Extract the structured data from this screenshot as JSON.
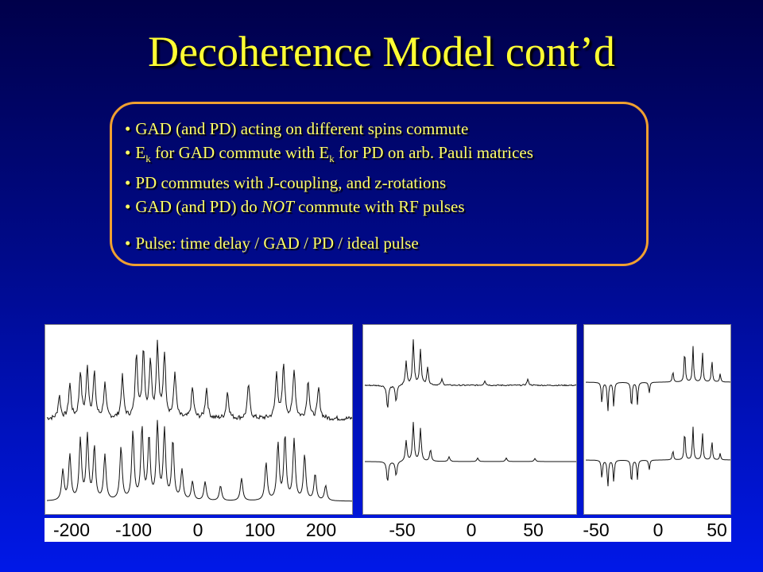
{
  "title": "Decoherence Model cont’d",
  "bullets": {
    "b1": "GAD (and PD) acting on different spins commute",
    "b2_a": "E",
    "b2_sub1": "k",
    "b2_b": " for GAD commute with E",
    "b2_sub2": "k",
    "b2_c": " for PD on arb. Pauli matrices",
    "b3": "PD commutes with J-coupling, and z-rotations",
    "b4_a": "GAD (and PD) do ",
    "b4_em": "NOT",
    "b4_b": " commute with RF pulses",
    "b5": "Pulse: time delay / GAD / PD / ideal pulse"
  },
  "colors": {
    "title": "#ffff33",
    "text": "#ffff66",
    "box_border": "#f0a030",
    "spectrum": "#111111"
  },
  "chart_data": [
    {
      "type": "line",
      "description_ref": "left spectra panel (experimental top, simulated bottom)",
      "xlim": [
        -220,
        220
      ],
      "x_tick_labels": [
        "-200",
        "-100",
        "0",
        "100",
        "200"
      ],
      "series": [
        {
          "peaks": [
            [
              -200,
              30
            ],
            [
              -185,
              45
            ],
            [
              -170,
              60
            ],
            [
              -160,
              65
            ],
            [
              -150,
              58
            ],
            [
              -135,
              45
            ],
            [
              -110,
              55
            ],
            [
              -90,
              85
            ],
            [
              -80,
              90
            ],
            [
              -70,
              75
            ],
            [
              -60,
              95
            ],
            [
              -50,
              85
            ],
            [
              -35,
              60
            ],
            [
              -10,
              40
            ],
            [
              10,
              40
            ],
            [
              40,
              35
            ],
            [
              70,
              45
            ],
            [
              110,
              60
            ],
            [
              120,
              70
            ],
            [
              135,
              65
            ],
            [
              155,
              50
            ],
            [
              170,
              40
            ]
          ],
          "noise": 6
        },
        {
          "peaks": [
            [
              -195,
              40
            ],
            [
              -185,
              60
            ],
            [
              -170,
              80
            ],
            [
              -160,
              85
            ],
            [
              -150,
              70
            ],
            [
              -135,
              60
            ],
            [
              -112,
              70
            ],
            [
              -95,
              90
            ],
            [
              -82,
              95
            ],
            [
              -72,
              82
            ],
            [
              -60,
              100
            ],
            [
              -50,
              92
            ],
            [
              -38,
              78
            ],
            [
              -25,
              40
            ],
            [
              -10,
              25
            ],
            [
              8,
              25
            ],
            [
              30,
              20
            ],
            [
              60,
              30
            ],
            [
              95,
              50
            ],
            [
              112,
              75
            ],
            [
              122,
              85
            ],
            [
              135,
              80
            ],
            [
              150,
              60
            ],
            [
              165,
              35
            ],
            [
              180,
              20
            ]
          ],
          "noise": 0
        }
      ]
    },
    {
      "type": "line",
      "description_ref": "middle spectra panel",
      "xlim": [
        -75,
        75
      ],
      "x_tick_labels": [
        "-50",
        "0",
        "50"
      ],
      "series": [
        {
          "peaks": [
            [
              -58,
              -40
            ],
            [
              -52,
              -28
            ],
            [
              -45,
              40
            ],
            [
              -40,
              75
            ],
            [
              -35,
              60
            ],
            [
              -30,
              30
            ],
            [
              -20,
              10
            ],
            [
              10,
              8
            ],
            [
              40,
              10
            ]
          ],
          "noise": 2
        },
        {
          "peaks": [
            [
              -58,
              -35
            ],
            [
              -52,
              -25
            ],
            [
              -45,
              35
            ],
            [
              -40,
              65
            ],
            [
              -35,
              55
            ],
            [
              -28,
              20
            ],
            [
              -15,
              8
            ],
            [
              5,
              6
            ],
            [
              25,
              6
            ],
            [
              45,
              5
            ]
          ],
          "noise": 0
        }
      ]
    },
    {
      "type": "line",
      "description_ref": "right spectra panel",
      "xlim": [
        -70,
        55
      ],
      "x_tick_labels": [
        "-50",
        "0",
        "50"
      ],
      "series": [
        {
          "peaks": [
            [
              -55,
              -40
            ],
            [
              -50,
              -55
            ],
            [
              -45,
              -45
            ],
            [
              -30,
              -50
            ],
            [
              -25,
              -40
            ],
            [
              -15,
              -20
            ],
            [
              5,
              20
            ],
            [
              15,
              60
            ],
            [
              22,
              65
            ],
            [
              30,
              55
            ],
            [
              38,
              40
            ],
            [
              45,
              15
            ]
          ],
          "noise": 0
        },
        {
          "peaks": [
            [
              -55,
              -35
            ],
            [
              -50,
              -50
            ],
            [
              -45,
              -40
            ],
            [
              -30,
              -45
            ],
            [
              -25,
              -35
            ],
            [
              -15,
              -18
            ],
            [
              5,
              18
            ],
            [
              15,
              55
            ],
            [
              22,
              60
            ],
            [
              30,
              50
            ],
            [
              38,
              35
            ],
            [
              45,
              12
            ]
          ],
          "noise": 0
        }
      ]
    }
  ]
}
